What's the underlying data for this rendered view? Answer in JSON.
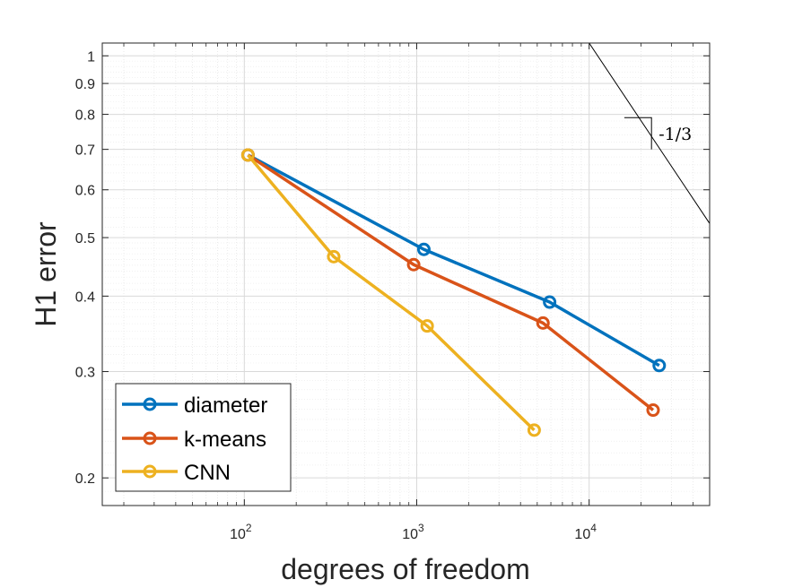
{
  "chart_data": {
    "type": "line",
    "xscale": "log",
    "yscale": "log",
    "xlabel": "degrees of freedom",
    "ylabel": "H1 error",
    "xlim": [
      15,
      50000
    ],
    "ylim": [
      0.18,
      1.05
    ],
    "grid": true,
    "legend_position": "bottom-left",
    "colors": {
      "diameter": "#0072BD",
      "k-means": "#D95319",
      "CNN": "#EDB120"
    },
    "x_ticks": [
      {
        "value": 100,
        "base": "10",
        "exp": "2"
      },
      {
        "value": 1000,
        "base": "10",
        "exp": "3"
      },
      {
        "value": 10000,
        "base": "10",
        "exp": "4"
      }
    ],
    "y_ticks": [
      {
        "value": 0.2,
        "label": "0.2"
      },
      {
        "value": 0.3,
        "label": "0.3"
      },
      {
        "value": 0.4,
        "label": "0.4"
      },
      {
        "value": 0.5,
        "label": "0.5"
      },
      {
        "value": 0.6,
        "label": "0.6"
      },
      {
        "value": 0.7,
        "label": "0.7"
      },
      {
        "value": 0.8,
        "label": "0.8"
      },
      {
        "value": 0.9,
        "label": "0.9"
      },
      {
        "value": 1,
        "label": "1"
      }
    ],
    "series": [
      {
        "name": "diameter",
        "x": [
          105,
          1100,
          5900,
          25500
        ],
        "y": [
          0.685,
          0.478,
          0.391,
          0.307
        ]
      },
      {
        "name": "k-means",
        "x": [
          105,
          960,
          5400,
          23500
        ],
        "y": [
          0.685,
          0.451,
          0.361,
          0.259
        ]
      },
      {
        "name": "CNN",
        "x": [
          105,
          330,
          1150,
          4800
        ],
        "y": [
          0.685,
          0.465,
          0.357,
          0.24
        ]
      }
    ],
    "reference_slope": {
      "label": "-1/3",
      "slope": -0.3333,
      "line_x": [
        10000,
        50000
      ],
      "line_y": [
        1.05,
        0.5277
      ],
      "triangle_x": [
        16000,
        23000
      ],
      "triangle_y": [
        0.79,
        0.7
      ]
    }
  }
}
